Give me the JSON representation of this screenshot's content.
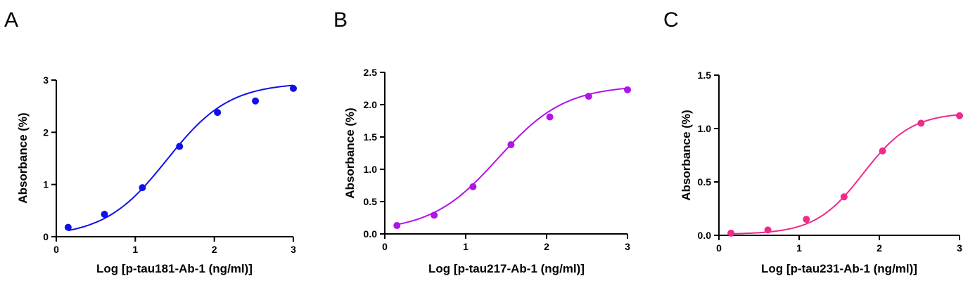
{
  "chart_data": [
    {
      "type": "scatter",
      "panel_label": "A",
      "color": "#1010e8",
      "xlabel": "Log [p-tau181-Ab-1 (ng/ml)]",
      "ylabel": "Absorbance (%)",
      "xlim": [
        0,
        3
      ],
      "ylim": [
        0,
        3
      ],
      "x_ticks": [
        "0",
        "1",
        "2",
        "3"
      ],
      "y_ticks": [
        "0",
        "1",
        "2",
        "3"
      ],
      "x_tick_values": [
        0,
        1,
        2,
        3
      ],
      "y_tick_values": [
        0,
        1,
        2,
        3
      ],
      "grid": false,
      "points": {
        "x": [
          0.15,
          0.61,
          1.09,
          1.56,
          2.04,
          2.52,
          3.0
        ],
        "y": [
          0.18,
          0.43,
          0.94,
          1.73,
          2.38,
          2.6,
          2.84
        ]
      },
      "fit": {
        "model": "4PL",
        "bottom": 0.0,
        "top": 2.95,
        "logEC50": 1.4,
        "hill": 1.1
      }
    },
    {
      "type": "scatter",
      "panel_label": "B",
      "color": "#b014e8",
      "xlabel": "Log [p-tau217-Ab-1 (ng/ml)]",
      "ylabel": "Absorbance (%)",
      "xlim": [
        0,
        3
      ],
      "ylim": [
        0,
        2.5
      ],
      "x_ticks": [
        "0",
        "1",
        "2",
        "3"
      ],
      "y_ticks": [
        "0.0",
        "0.5",
        "1.0",
        "1.5",
        "2.0",
        "2.5"
      ],
      "x_tick_values": [
        0,
        1,
        2,
        3
      ],
      "y_tick_values": [
        0,
        0.5,
        1.0,
        1.5,
        2.0,
        2.5
      ],
      "grid": false,
      "points": {
        "x": [
          0.15,
          0.61,
          1.09,
          1.56,
          2.04,
          2.52,
          3.0
        ],
        "y": [
          0.13,
          0.29,
          0.73,
          1.38,
          1.81,
          2.13,
          2.23
        ]
      },
      "fit": {
        "model": "4PL",
        "bottom": 0.04,
        "top": 2.3,
        "logEC50": 1.4,
        "hill": 1.05
      }
    },
    {
      "type": "scatter",
      "panel_label": "C",
      "color": "#ee2a8a",
      "xlabel": "Log [p-tau231-Ab-1 (ng/ml)]",
      "ylabel": "Absorbance (%)",
      "xlim": [
        0,
        3
      ],
      "ylim": [
        0,
        1.5
      ],
      "x_ticks": [
        "0",
        "1",
        "2",
        "3"
      ],
      "y_ticks": [
        "0.0",
        "0.5",
        "1.0",
        "1.5"
      ],
      "x_tick_values": [
        0,
        1,
        2,
        3
      ],
      "y_tick_values": [
        0,
        0.5,
        1.0,
        1.5
      ],
      "grid": false,
      "points": {
        "x": [
          0.15,
          0.61,
          1.09,
          1.56,
          2.04,
          2.52,
          3.0
        ],
        "y": [
          0.02,
          0.05,
          0.15,
          0.36,
          0.79,
          1.05,
          1.12
        ]
      },
      "fit": {
        "model": "4PL",
        "bottom": 0.01,
        "top": 1.15,
        "logEC50": 1.8,
        "hill": 1.45
      }
    }
  ]
}
